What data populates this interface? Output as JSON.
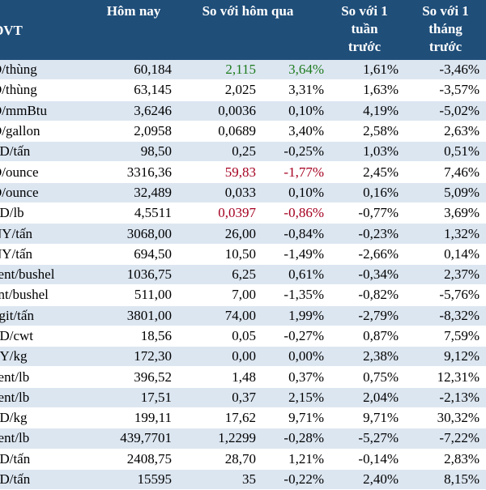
{
  "header": {
    "unit": "ĐVT",
    "today": "Hôm nay",
    "vs_yesterday": "So với hôm qua",
    "vs_week": [
      "So với 1",
      "tuần",
      "trước"
    ],
    "vs_month": [
      "So với 1",
      "tháng",
      "trước"
    ]
  },
  "colors": {
    "header_bg": "#1f4e79",
    "stripe": "#dce6f1",
    "up": "#1e7b1e",
    "down": "#a50021"
  },
  "rows": [
    {
      "unit": "D/thùng",
      "today": "60,184",
      "chg": "2,115",
      "pct": "3,64%",
      "week": "1,61%",
      "month": "-3,46%",
      "tone": "up"
    },
    {
      "unit": "D/thùng",
      "today": "63,145",
      "chg": "2,025",
      "pct": "3,31%",
      "week": "1,63%",
      "month": "-3,57%",
      "tone": ""
    },
    {
      "unit": "D/mmBtu",
      "today": "3,6246",
      "chg": "0,0036",
      "pct": "0,10%",
      "week": "4,19%",
      "month": "-5,02%",
      "tone": ""
    },
    {
      "unit": "D/gallon",
      "today": "2,0958",
      "chg": "0,0689",
      "pct": "3,40%",
      "week": "2,58%",
      "month": "2,63%",
      "tone": ""
    },
    {
      "unit": "SD/tấn",
      "today": "98,50",
      "chg": "0,25",
      "pct": "-0,25%",
      "week": "1,03%",
      "month": "0,51%",
      "tone": ""
    },
    {
      "unit": "D/ounce",
      "today": "3316,36",
      "chg": "59,83",
      "pct": "-1,77%",
      "week": "2,45%",
      "month": "7,46%",
      "tone": "down"
    },
    {
      "unit": "D/ounce",
      "today": "32,489",
      "chg": "0,033",
      "pct": "0,10%",
      "week": "0,16%",
      "month": "5,09%",
      "tone": ""
    },
    {
      "unit": "SD/lb",
      "today": "4,5511",
      "chg": "0,0397",
      "pct": "-0,86%",
      "week": "-0,77%",
      "month": "3,69%",
      "tone": "down"
    },
    {
      "unit": "NY/tấn",
      "today": "3068,00",
      "chg": "26,00",
      "pct": "-0,84%",
      "week": "-0,23%",
      "month": "1,32%",
      "tone": ""
    },
    {
      "unit": "NY/tấn",
      "today": "694,50",
      "chg": "10,50",
      "pct": "-1,49%",
      "week": "-2,66%",
      "month": "0,14%",
      "tone": ""
    },
    {
      "unit": "cent/bushel",
      "today": "1036,75",
      "chg": "6,25",
      "pct": "0,61%",
      "week": "-0,34%",
      "month": "2,37%",
      "tone": ""
    },
    {
      "unit": "ent/bushel",
      "today": "511,00",
      "chg": "7,00",
      "pct": "-1,35%",
      "week": "-0,82%",
      "month": "-5,76%",
      "tone": ""
    },
    {
      "unit": "ggit/tấn",
      "today": "3801,00",
      "chg": "74,00",
      "pct": "1,99%",
      "week": "-2,79%",
      "month": "-8,32%",
      "tone": ""
    },
    {
      "unit": "SD/cwt",
      "today": "18,56",
      "chg": "0,05",
      "pct": "-0,27%",
      "week": "0,87%",
      "month": "7,59%",
      "tone": ""
    },
    {
      "unit": "PY/kg",
      "today": "172,30",
      "chg": "0,00",
      "pct": "0,00%",
      "week": "2,38%",
      "month": "9,12%",
      "tone": ""
    },
    {
      "unit": "cent/lb",
      "today": "396,52",
      "chg": "1,48",
      "pct": "0,37%",
      "week": "0,75%",
      "month": "12,31%",
      "tone": ""
    },
    {
      "unit": "cent/lb",
      "today": "17,51",
      "chg": "0,37",
      "pct": "2,15%",
      "week": "2,04%",
      "month": "-2,13%",
      "tone": ""
    },
    {
      "unit": "SD/kg",
      "today": "199,11",
      "chg": "17,62",
      "pct": "9,71%",
      "week": "9,71%",
      "month": "30,32%",
      "tone": ""
    },
    {
      "unit": "cent/lb",
      "today": "439,7701",
      "chg": "1,2299",
      "pct": "-0,28%",
      "week": "-5,27%",
      "month": "-7,22%",
      "tone": ""
    },
    {
      "unit": "SD/tấn",
      "today": "2408,75",
      "chg": "28,70",
      "pct": "1,21%",
      "week": "-0,14%",
      "month": "2,83%",
      "tone": ""
    },
    {
      "unit": "SD/tấn",
      "today": "15595",
      "chg": "35",
      "pct": "-0,22%",
      "week": "2,40%",
      "month": "8,15%",
      "tone": ""
    }
  ]
}
